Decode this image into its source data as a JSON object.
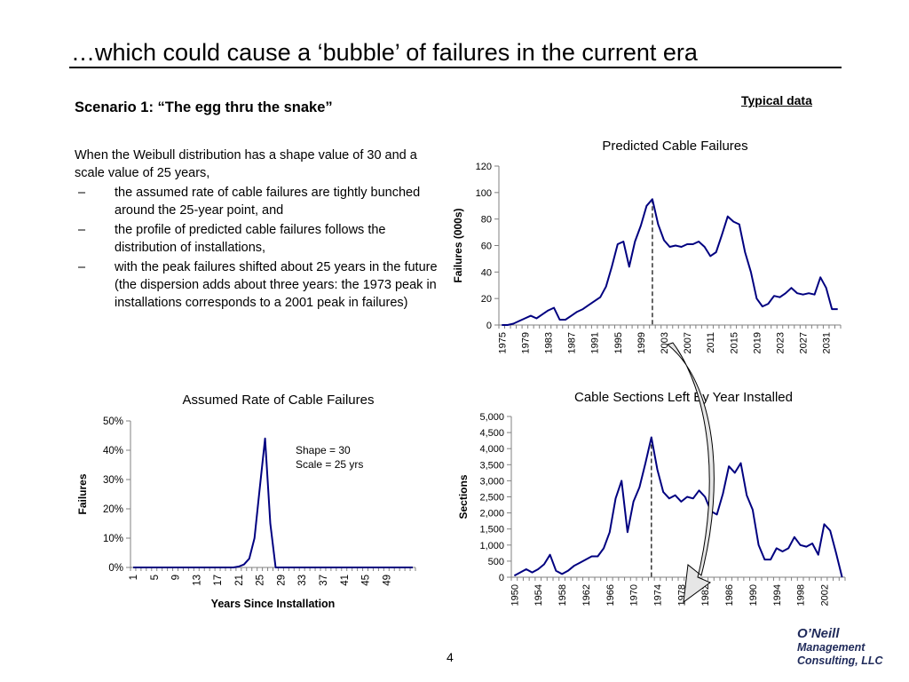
{
  "slide": {
    "title": "…which could cause a ‘bubble’ of failures in the current era",
    "subtitle": "Scenario 1: “The egg thru the snake”",
    "tag": "Typical data",
    "intro": "When the Weibull distribution has a shape value of 30 and a scale value of 25 years,",
    "bullets": [
      "the assumed rate of cable failures are tightly bunched around the 25-year point, and",
      "the profile of predicted cable failures follows the distribution of installations,",
      "with the peak failures shifted about 25 years in the future (the dispersion adds about three years: the 1973 peak in installations corresponds to a 2001 peak in failures)"
    ],
    "bullet_dash": "–",
    "page_number": "4",
    "logo": {
      "line1": "O’Neill",
      "line2": "Management",
      "line3": "Consulting, LLC"
    }
  },
  "colors": {
    "series": "#000080",
    "axis": "#808080",
    "dashed_marker": "#333333",
    "arrow_fill": "#e6e6e6"
  },
  "chart_data": [
    {
      "id": "predicted",
      "type": "line",
      "title": "Predicted Cable Failures",
      "xlabel": "",
      "ylabel": "Failures (000s)",
      "ylim": [
        0,
        120
      ],
      "yticks": [
        "0",
        "20",
        "40",
        "60",
        "80",
        "100",
        "120"
      ],
      "x": [
        1975,
        1976,
        1977,
        1978,
        1979,
        1980,
        1981,
        1982,
        1983,
        1984,
        1985,
        1986,
        1987,
        1988,
        1989,
        1990,
        1991,
        1992,
        1993,
        1994,
        1995,
        1996,
        1997,
        1998,
        1999,
        2000,
        2001,
        2002,
        2003,
        2004,
        2005,
        2006,
        2007,
        2008,
        2009,
        2010,
        2011,
        2012,
        2013,
        2014,
        2015,
        2016,
        2017,
        2018,
        2019,
        2020,
        2021,
        2022,
        2023,
        2024,
        2025,
        2026,
        2027,
        2028,
        2029,
        2030,
        2031,
        2032,
        2033
      ],
      "xticks": [
        "1975",
        "1979",
        "1983",
        "1987",
        "1991",
        "1995",
        "1999",
        "2003",
        "2007",
        "2011",
        "2015",
        "2019",
        "2023",
        "2027",
        "2031"
      ],
      "values": [
        0,
        0,
        1,
        3,
        5,
        7,
        5,
        8,
        11,
        13,
        4,
        4,
        7,
        10,
        12,
        15,
        18,
        21,
        29,
        44,
        61,
        63,
        44,
        63,
        75,
        90,
        95,
        76,
        64,
        59,
        60,
        59,
        61,
        61,
        63,
        59,
        52,
        55,
        68,
        82,
        78,
        76,
        55,
        40,
        20,
        14,
        16,
        22,
        21,
        24,
        28,
        24,
        23,
        24,
        23,
        36,
        28,
        12,
        12
      ],
      "marker_x": 2001,
      "grid": false
    },
    {
      "id": "assumed",
      "type": "line",
      "title": "Assumed Rate of Cable Failures",
      "xlabel": "Years Since Installation",
      "ylabel": "Failures",
      "ylim": [
        0,
        0.5
      ],
      "yticks": [
        "0%",
        "10%",
        "20%",
        "30%",
        "40%",
        "50%"
      ],
      "x": [
        1,
        2,
        3,
        4,
        5,
        6,
        7,
        8,
        9,
        10,
        11,
        12,
        13,
        14,
        15,
        16,
        17,
        18,
        19,
        20,
        21,
        22,
        23,
        24,
        25,
        26,
        27,
        28,
        29,
        30,
        31,
        32,
        33,
        34,
        35,
        36,
        37,
        38,
        39,
        40,
        41,
        42,
        43,
        44,
        45,
        46,
        47,
        48,
        49,
        50,
        51,
        52,
        53,
        54
      ],
      "xticks": [
        "1",
        "5",
        "9",
        "13",
        "17",
        "21",
        "25",
        "29",
        "33",
        "37",
        "41",
        "45",
        "49"
      ],
      "values": [
        0,
        0,
        0,
        0,
        0,
        0,
        0,
        0,
        0,
        0,
        0,
        0,
        0,
        0,
        0,
        0,
        0,
        0,
        0,
        0,
        0.003,
        0.01,
        0.03,
        0.1,
        0.27,
        0.44,
        0.15,
        0,
        0,
        0,
        0,
        0,
        0,
        0,
        0,
        0,
        0,
        0,
        0,
        0,
        0,
        0,
        0,
        0,
        0,
        0,
        0,
        0,
        0,
        0,
        0,
        0,
        0,
        0
      ],
      "annotation": [
        "Shape = 30",
        "Scale = 25 yrs"
      ],
      "grid": false
    },
    {
      "id": "sections",
      "type": "line",
      "title": "Cable Sections Left By Year Installed",
      "xlabel": "",
      "ylabel": "Sections",
      "ylim": [
        0,
        5000
      ],
      "yticks": [
        "0",
        "500",
        "1,000",
        "1,500",
        "2,000",
        "2,500",
        "3,000",
        "3,500",
        "4,000",
        "4,500",
        "5,000"
      ],
      "x": [
        1950,
        1951,
        1952,
        1953,
        1954,
        1955,
        1956,
        1957,
        1958,
        1959,
        1960,
        1961,
        1962,
        1963,
        1964,
        1965,
        1966,
        1967,
        1968,
        1969,
        1970,
        1971,
        1972,
        1973,
        1974,
        1975,
        1976,
        1977,
        1978,
        1979,
        1980,
        1981,
        1982,
        1983,
        1984,
        1985,
        1986,
        1987,
        1988,
        1989,
        1990,
        1991,
        1992,
        1993,
        1994,
        1995,
        1996,
        1997,
        1998,
        1999,
        2000,
        2001,
        2002,
        2003,
        2004,
        2005
      ],
      "xticks": [
        "1950",
        "1954",
        "1958",
        "1962",
        "1966",
        "1970",
        "1974",
        "1978",
        "1982",
        "1986",
        "1990",
        "1994",
        "1998",
        "2002"
      ],
      "values": [
        50,
        150,
        250,
        150,
        250,
        400,
        700,
        200,
        100,
        200,
        350,
        450,
        550,
        650,
        650,
        900,
        1400,
        2450,
        3000,
        1400,
        2350,
        2800,
        3550,
        4350,
        3350,
        2650,
        2450,
        2550,
        2350,
        2500,
        2450,
        2700,
        2500,
        2050,
        1950,
        2600,
        3450,
        3250,
        3550,
        2550,
        2100,
        1000,
        550,
        550,
        900,
        800,
        900,
        1250,
        1000,
        950,
        1050,
        700,
        1650,
        1450,
        750,
        0
      ],
      "marker_x": 1973,
      "grid": false
    }
  ]
}
